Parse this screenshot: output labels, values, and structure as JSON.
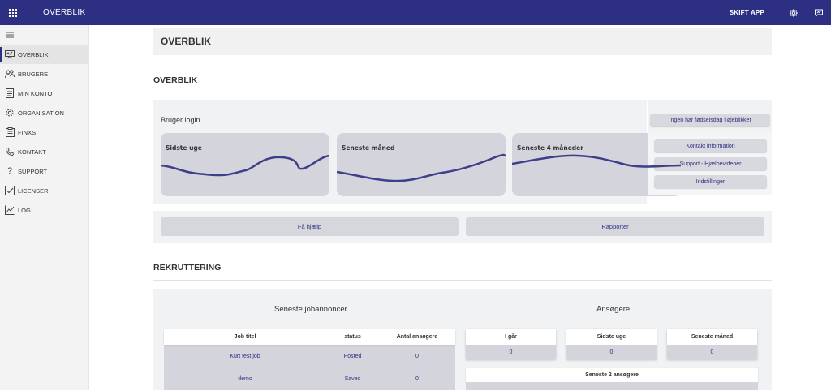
{
  "topbar": {
    "grid_icon": "grid-icon",
    "title": "OVERBLIK",
    "switch_app": "SKIFT APP",
    "settings_icon": "gear-icon",
    "feedback_icon": "feedback-icon"
  },
  "sidebar": {
    "menu_icon": "hamburger-icon",
    "items": [
      {
        "label": "OVERBLIK",
        "icon": "dashboard-icon",
        "active": true
      },
      {
        "label": "BRUGERE",
        "icon": "users-icon"
      },
      {
        "label": "MIN KONTO",
        "icon": "account-icon"
      },
      {
        "label": "ORGANISATION",
        "icon": "gear-icon"
      },
      {
        "label": "FINXS",
        "icon": "clipboard-icon"
      },
      {
        "label": "KONTAKT",
        "icon": "phone-icon"
      },
      {
        "label": "SUPPORT",
        "icon": "question-icon"
      },
      {
        "label": "LICENSER",
        "icon": "checkbox-icon"
      },
      {
        "label": "LOG",
        "icon": "chart-line-icon"
      }
    ]
  },
  "page": {
    "header": "OVERBLIK",
    "overview_title": "OVERBLIK",
    "recruit_title": "REKRUTTERING"
  },
  "login": {
    "title": "Bruger login",
    "cards": [
      {
        "label": "Sidste uge"
      },
      {
        "label": "Seneste måned"
      },
      {
        "label": "Seneste 4 måneder"
      }
    ]
  },
  "right_buttons": {
    "birthday": "Ingen har fødselsdag i øjeblikket",
    "contact": "Kontakt information",
    "support": "Support - Hjælpevideoer",
    "settings": "Indstillinger"
  },
  "actions": {
    "help": "Få hjælp",
    "report": "Rapporter"
  },
  "recruitment": {
    "jobs_heading": "Seneste jobannoncer",
    "applicants_heading": "Ansøgere",
    "table": {
      "headers": {
        "title": "Job titel",
        "status": "status",
        "count": "Antal ansøgere"
      },
      "rows": [
        {
          "title": "Kurt test job",
          "status": "Posted",
          "count": "0"
        },
        {
          "title": "demo",
          "status": "Saved",
          "count": "0"
        }
      ]
    },
    "stats": [
      {
        "label": "I går",
        "value": "0"
      },
      {
        "label": "Sidste uge",
        "value": "0"
      },
      {
        "label": "Seneste måned",
        "value": "0"
      }
    ],
    "latest_applicants": "Seneste 2 ansøgere"
  },
  "colors": {
    "brand": "#2d2f82",
    "panel": "#f1f2f4",
    "card": "#d4d5dc",
    "sparkline": "#3d3f8a"
  }
}
